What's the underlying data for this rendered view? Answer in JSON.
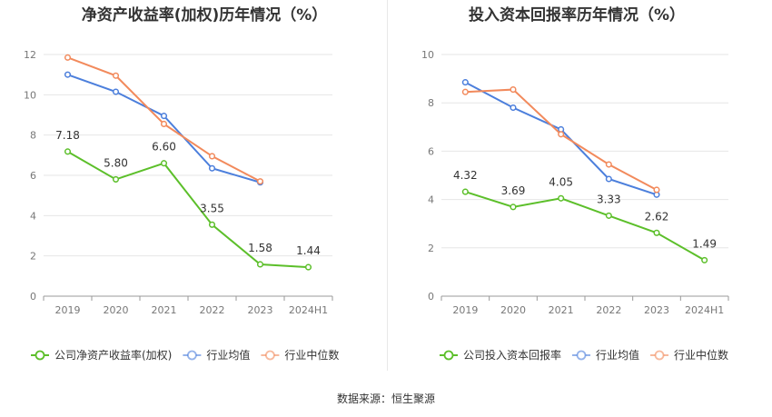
{
  "footer": {
    "source": "数据来源：恒生聚源"
  },
  "chart_data": [
    {
      "type": "line",
      "title": "净资产收益率(加权)历年情况（%）",
      "categories": [
        "2019",
        "2020",
        "2021",
        "2022",
        "2023",
        "2024H1"
      ],
      "ylim": [
        0,
        12
      ],
      "yticks": [
        0,
        2,
        4,
        6,
        8,
        10,
        12
      ],
      "grid": true,
      "legend_position": "bottom",
      "series": [
        {
          "name": "公司净资产收益率(加权)",
          "color": "#5cbf2a",
          "values": [
            7.18,
            5.8,
            6.6,
            3.55,
            1.58,
            1.44
          ],
          "labels": [
            "7.18",
            "5.80",
            "6.60",
            "3.55",
            "1.58",
            "1.44"
          ]
        },
        {
          "name": "行业均值",
          "color": "#4c7fdc",
          "values": [
            11.0,
            10.15,
            8.95,
            6.35,
            5.65,
            null
          ]
        },
        {
          "name": "行业中位数",
          "color": "#f28a5c",
          "values": [
            11.85,
            10.95,
            8.55,
            6.95,
            5.7,
            null
          ]
        }
      ]
    },
    {
      "type": "line",
      "title": "投入资本回报率历年情况（%）",
      "categories": [
        "2019",
        "2020",
        "2021",
        "2022",
        "2023",
        "2024H1"
      ],
      "ylim": [
        0,
        10
      ],
      "yticks": [
        0,
        2,
        4,
        6,
        8,
        10
      ],
      "grid": true,
      "legend_position": "bottom",
      "series": [
        {
          "name": "公司投入资本回报率",
          "color": "#5cbf2a",
          "values": [
            4.32,
            3.69,
            4.05,
            3.33,
            2.62,
            1.49
          ],
          "labels": [
            "4.32",
            "3.69",
            "4.05",
            "3.33",
            "2.62",
            "1.49"
          ]
        },
        {
          "name": "行业均值",
          "color": "#4c7fdc",
          "values": [
            8.85,
            7.8,
            6.9,
            4.85,
            4.2,
            null
          ]
        },
        {
          "name": "行业中位数",
          "color": "#f28a5c",
          "values": [
            8.45,
            8.55,
            6.7,
            5.45,
            4.4,
            null
          ]
        }
      ]
    }
  ]
}
